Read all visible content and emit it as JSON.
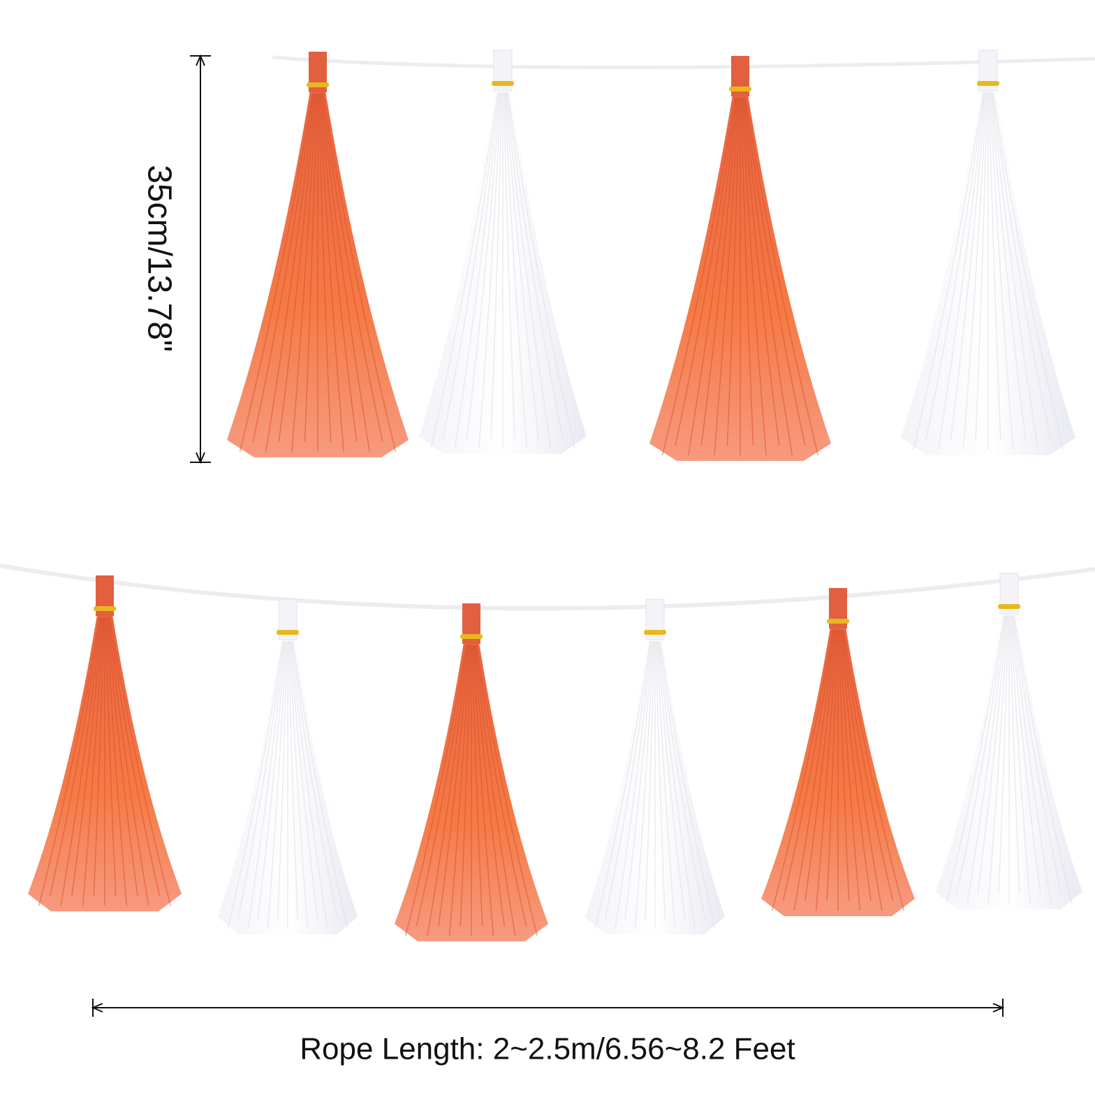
{
  "dimensions": {
    "height_label": "35cm/13.78\"",
    "rope_length_label": "Rope Length: 2~2.5m/6.56~8.2 Feet"
  }
}
